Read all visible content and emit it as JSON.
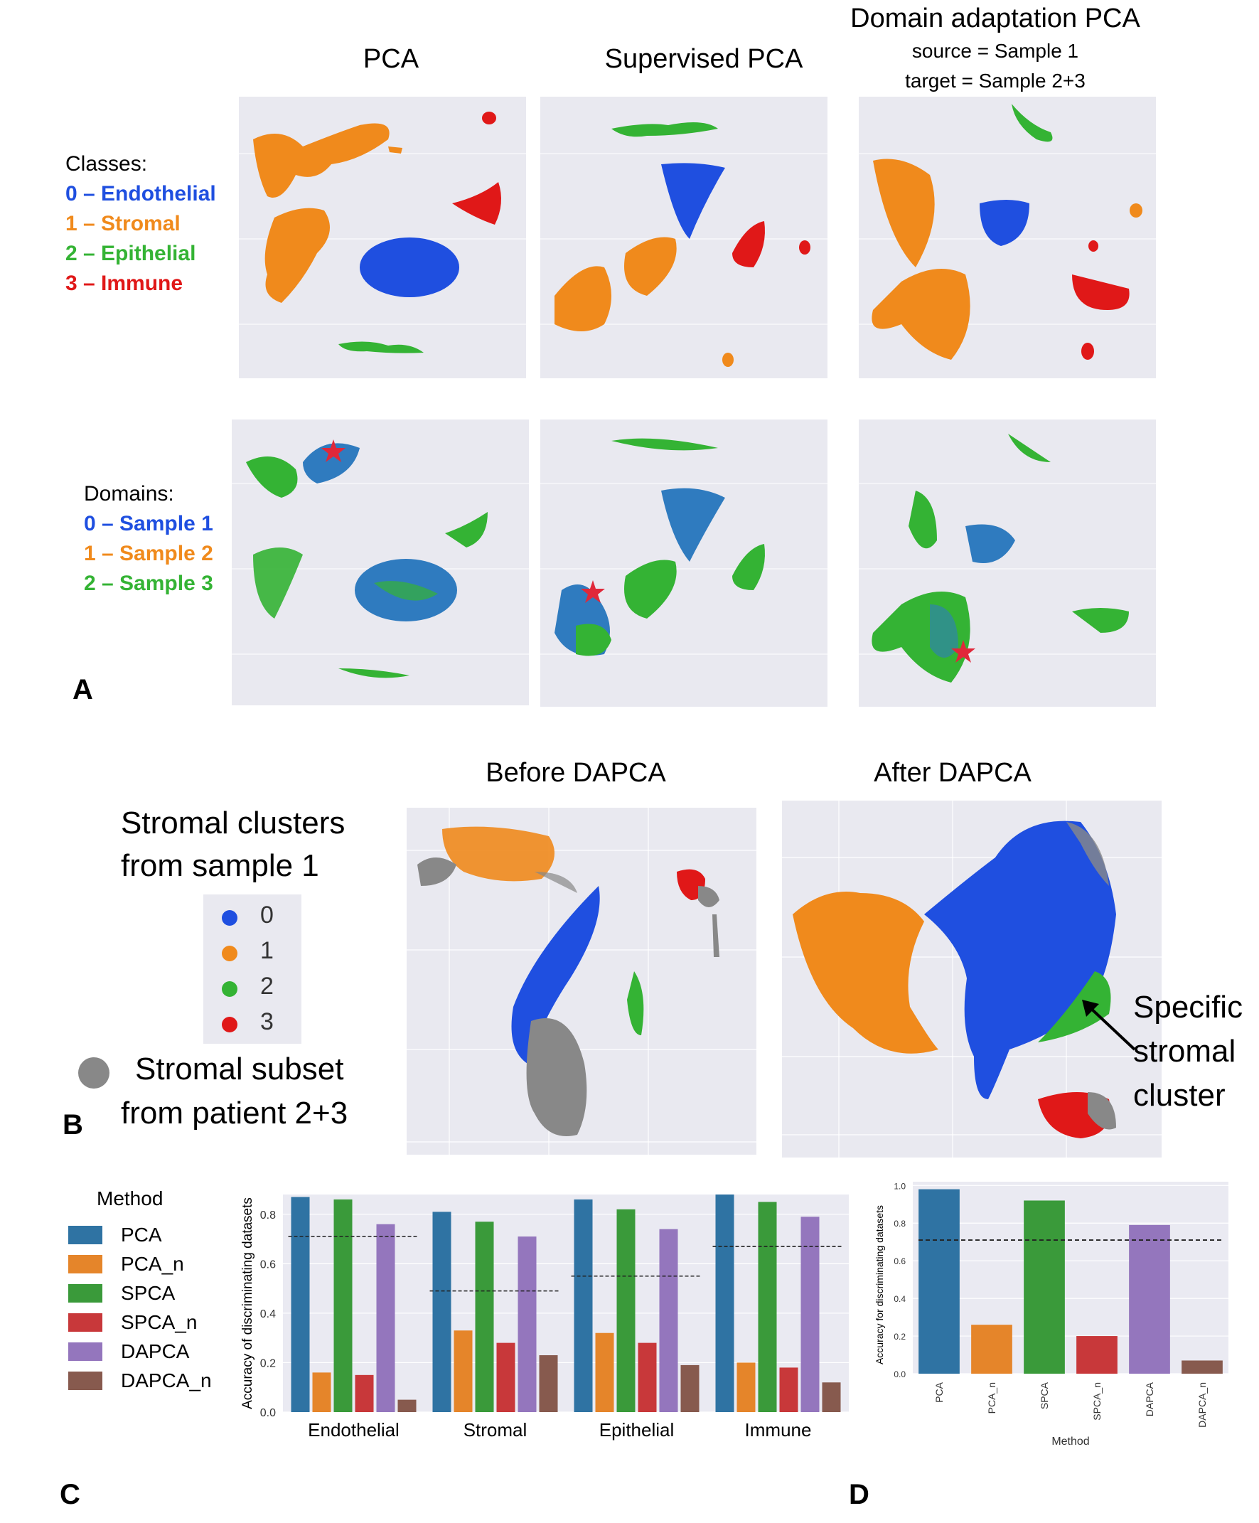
{
  "panel_a": {
    "label": "A",
    "column_titles": [
      "PCA",
      "Supervised PCA",
      "Domain adaptation PCA"
    ],
    "dapca_subtitle_source": "source = Sample 1",
    "dapca_subtitle_target": "target = Sample 2+3",
    "classes_legend": {
      "title": "Classes:",
      "items": [
        {
          "label": "0 – Endothelial",
          "color": "#1f4fe0"
        },
        {
          "label": "1 – Stromal",
          "color": "#f08a1c"
        },
        {
          "label": "2 – Epithelial",
          "color": "#34b334"
        },
        {
          "label": "3 – Immune",
          "color": "#e01818"
        }
      ]
    },
    "domains_legend": {
      "title": "Domains:",
      "items": [
        {
          "label": "0 – Sample 1",
          "color": "#1f4fe0"
        },
        {
          "label": "1 – Sample 2",
          "color": "#f08a1c"
        },
        {
          "label": "2 – Sample 3",
          "color": "#34b334"
        }
      ]
    }
  },
  "panel_b": {
    "label": "B",
    "before_title": "Before DAPCA",
    "after_title": "After DAPCA",
    "legend_title_line1": "Stromal clusters",
    "legend_title_line2": "from sample 1",
    "clusters": [
      {
        "label": "0",
        "color": "#1f4fe0"
      },
      {
        "label": "1",
        "color": "#f08a1c"
      },
      {
        "label": "2",
        "color": "#34b334"
      },
      {
        "label": "3",
        "color": "#e01818"
      }
    ],
    "subset_line1": "Stromal subset",
    "subset_line2": "from patient 2+3",
    "subset_color": "#888888",
    "annotation_line1": "Specific",
    "annotation_line2": "stromal",
    "annotation_line3": "cluster"
  },
  "panel_c_label": "C",
  "panel_d_label": "D",
  "method_legend": {
    "title": "Method",
    "items": [
      {
        "label": "PCA",
        "color": "#2f73a3"
      },
      {
        "label": "PCA_n",
        "color": "#e5852a"
      },
      {
        "label": "SPCA",
        "color": "#3a9a3a"
      },
      {
        "label": "SPCA_n",
        "color": "#c8383a"
      },
      {
        "label": "DAPCA",
        "color": "#9476bd"
      },
      {
        "label": "DAPCA_n",
        "color": "#875a4e"
      }
    ]
  },
  "chart_data": [
    {
      "type": "bar",
      "panel": "C",
      "title": "",
      "xlabel": "",
      "ylabel": "Accuracy of discriminating datasets",
      "ylim": [
        0,
        0.88
      ],
      "yticks": [
        "0.0",
        "0.2",
        "0.4",
        "0.6",
        "0.8"
      ],
      "categories": [
        "Endothelial",
        "Stromal",
        "Epithelial",
        "Immune"
      ],
      "series": [
        {
          "name": "PCA",
          "values": [
            0.87,
            0.81,
            0.86,
            0.88
          ]
        },
        {
          "name": "PCA_n",
          "values": [
            0.16,
            0.33,
            0.32,
            0.2
          ]
        },
        {
          "name": "SPCA",
          "values": [
            0.86,
            0.77,
            0.82,
            0.85
          ]
        },
        {
          "name": "SPCA_n",
          "values": [
            0.15,
            0.28,
            0.28,
            0.18
          ]
        },
        {
          "name": "DAPCA",
          "values": [
            0.76,
            0.71,
            0.74,
            0.79
          ]
        },
        {
          "name": "DAPCA_n",
          "values": [
            0.05,
            0.23,
            0.19,
            0.12
          ]
        }
      ],
      "reference_lines": [
        0.71,
        0.49,
        0.55,
        0.67
      ],
      "grid": true
    },
    {
      "type": "bar",
      "panel": "D",
      "title": "",
      "xlabel": "Method",
      "ylabel": "Accuracy for discriminating datasets",
      "ylim": [
        0,
        1.02
      ],
      "yticks": [
        "0.0",
        "0.2",
        "0.4",
        "0.6",
        "0.8",
        "1.0"
      ],
      "categories": [
        "PCA",
        "PCA_n",
        "SPCA",
        "SPCA_n",
        "DAPCA",
        "DAPCA_n"
      ],
      "values": [
        0.98,
        0.26,
        0.92,
        0.2,
        0.79,
        0.07
      ],
      "reference_line": 0.71,
      "grid": true
    }
  ]
}
